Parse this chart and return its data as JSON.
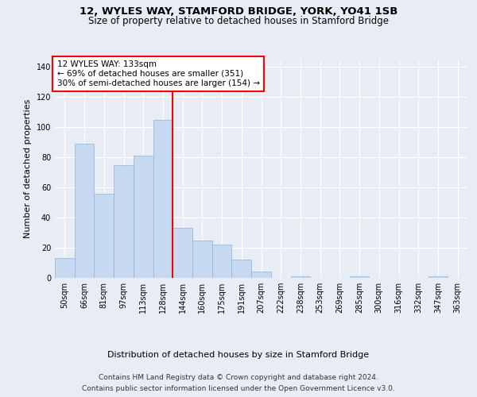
{
  "title_line1": "12, WYLES WAY, STAMFORD BRIDGE, YORK, YO41 1SB",
  "title_line2": "Size of property relative to detached houses in Stamford Bridge",
  "xlabel": "Distribution of detached houses by size in Stamford Bridge",
  "ylabel": "Number of detached properties",
  "bar_labels": [
    "50sqm",
    "66sqm",
    "81sqm",
    "97sqm",
    "113sqm",
    "128sqm",
    "144sqm",
    "160sqm",
    "175sqm",
    "191sqm",
    "207sqm",
    "222sqm",
    "238sqm",
    "253sqm",
    "269sqm",
    "285sqm",
    "300sqm",
    "316sqm",
    "332sqm",
    "347sqm",
    "363sqm"
  ],
  "bar_values": [
    13,
    89,
    56,
    75,
    81,
    105,
    33,
    25,
    22,
    12,
    4,
    0,
    1,
    0,
    0,
    1,
    0,
    0,
    0,
    1,
    0
  ],
  "bar_color": "#c6d9f0",
  "bar_edge_color": "#8ab4d8",
  "vline_color": "red",
  "annotation_text": "12 WYLES WAY: 133sqm\n← 69% of detached houses are smaller (351)\n30% of semi-detached houses are larger (154) →",
  "annotation_box_color": "white",
  "annotation_box_edge_color": "red",
  "ylim": [
    0,
    145
  ],
  "yticks": [
    0,
    20,
    40,
    60,
    80,
    100,
    120,
    140
  ],
  "background_color": "#e8edf5",
  "plot_background_color": "#e8edf5",
  "footer_line1": "Contains HM Land Registry data © Crown copyright and database right 2024.",
  "footer_line2": "Contains public sector information licensed under the Open Government Licence v3.0.",
  "grid_color": "white",
  "title_fontsize": 9.5,
  "subtitle_fontsize": 8.5,
  "axis_label_fontsize": 8,
  "tick_fontsize": 7,
  "footer_fontsize": 6.5,
  "annotation_fontsize": 7.5
}
